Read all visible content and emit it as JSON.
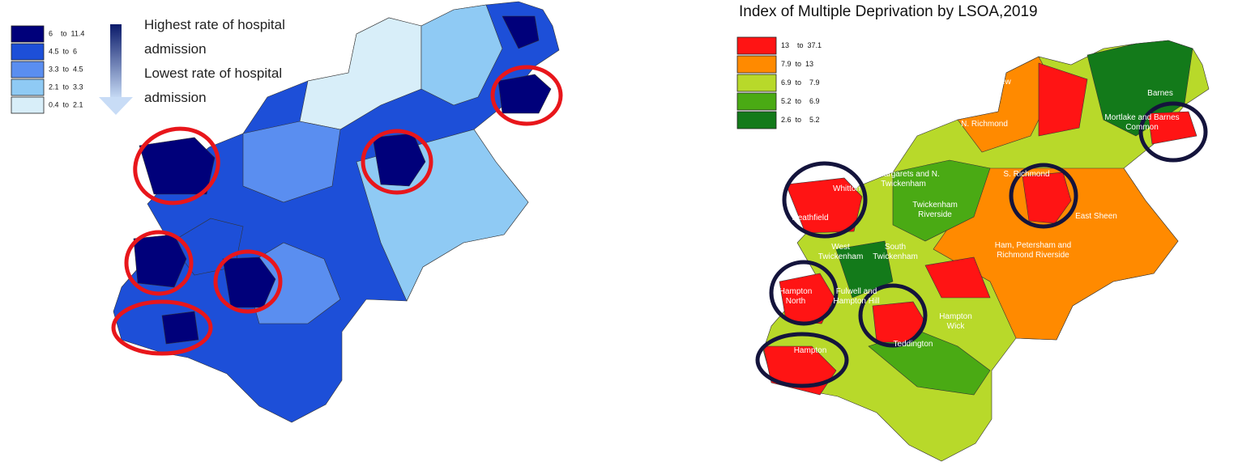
{
  "left_map": {
    "legend": [
      {
        "label": "6    to  11.4",
        "color": "#00007a"
      },
      {
        "label": "4.5  to  6",
        "color": "#1d4fd8"
      },
      {
        "label": "3.3  to  4.5",
        "color": "#5a8ef0"
      },
      {
        "label": "2.1  to  3.3",
        "color": "#8fcaf4"
      },
      {
        "label": "0.4  to  2.1",
        "color": "#d8eef9"
      }
    ],
    "arrow_labels": {
      "high": "Highest rate of hospital admission",
      "low": "Lowest rate of hospital admission"
    },
    "highlight_color": "#e8161b"
  },
  "right_map": {
    "title": "Index of Multiple Deprivation by LSOA,2019",
    "legend": [
      {
        "label": "13    to  37.1",
        "color": "#ff1414"
      },
      {
        "label": "7.9  to  13",
        "color": "#ff8a00"
      },
      {
        "label": "6.9  to    7.9",
        "color": "#b8d92a"
      },
      {
        "label": "5.2  to    6.9",
        "color": "#4aaa14"
      },
      {
        "label": "2.6  to    5.2",
        "color": "#137a1a"
      }
    ],
    "places": [
      "Kew",
      "N. Richmond",
      "Mortlake and Barnes Common",
      "Barnes",
      "St Margarets and N. Twickenham",
      "S. Richmond",
      "Twickenham Riverside",
      "East Sheen",
      "Whitton",
      "Heathfield",
      "Ham, Petersham and Richmond Riverside",
      "West Twickenham",
      "South Twickenham",
      "Hampton North",
      "Fulwell and Hampton Hill",
      "Hampton Wick",
      "Teddington",
      "Hampton"
    ],
    "highlight_color": "#14143c"
  }
}
